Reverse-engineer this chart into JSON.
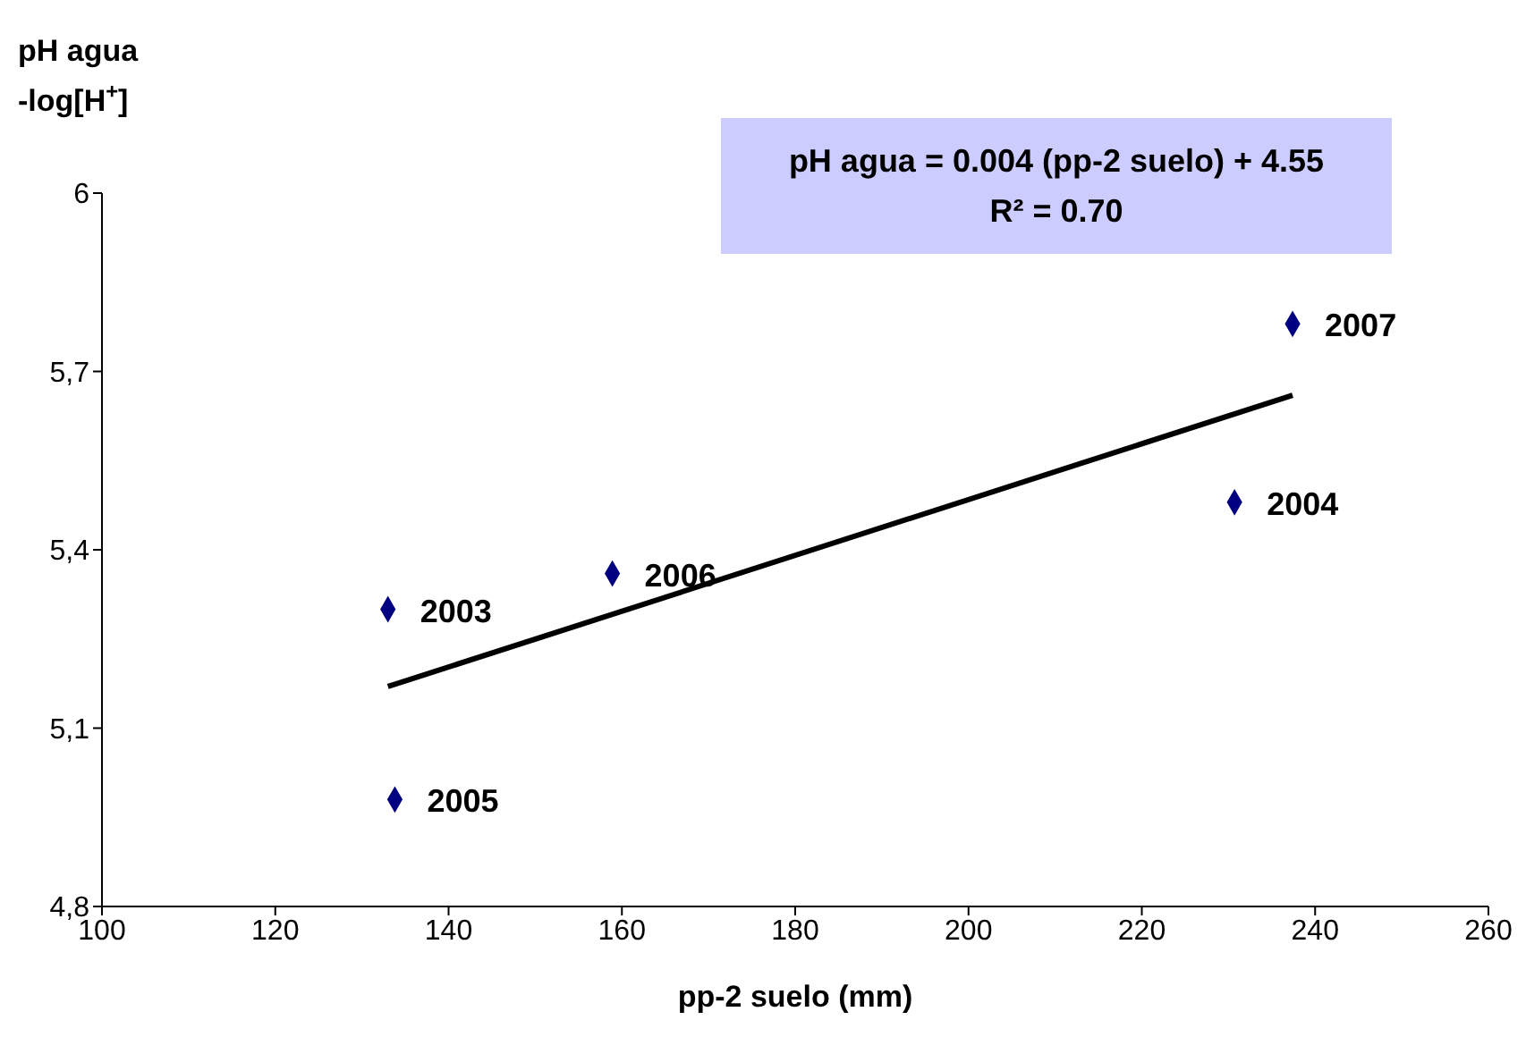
{
  "chart_data": {
    "type": "scatter",
    "xlabel": "pp-2 suelo (mm)",
    "ylabel": "pH agua\n-log[H$^{+}$]",
    "xlim": [
      100,
      260
    ],
    "xticks": [
      100,
      120,
      140,
      160,
      180,
      200,
      220,
      240,
      260
    ],
    "ylim": [
      4.8,
      6
    ],
    "yticks": [
      {
        "value": 4.8,
        "label": "4,8"
      },
      {
        "value": 5.1,
        "label": "5,1"
      },
      {
        "value": 5.4,
        "label": "5,4"
      },
      {
        "value": 5.7,
        "label": "5,7"
      },
      6
    ],
    "marker": "diamond",
    "series": [
      {
        "color": "#000080",
        "x": [
          133,
          133.8,
          158.9,
          230.7,
          237.4
        ],
        "values": [
          5.3,
          4.98,
          5.36,
          5.48,
          5.78
        ]
      },
      {
        "type": "line",
        "color": "#000000",
        "marker": "none",
        "x": [
          133,
          237.4
        ],
        "values": [
          5.17,
          5.66
        ]
      }
    ],
    "annotations": [
      "pH agua = 0.004 (pp-2 suelo) + 4.55",
      "R² = 0.70",
      {
        "text": "2003",
        "x": 133,
        "y": 5.3
      },
      {
        "text": "2005",
        "x": 133.8,
        "y": 4.98
      },
      {
        "text": "2006",
        "x": 158.9,
        "y": 5.36
      },
      {
        "text": "2004",
        "x": 230.7,
        "y": 5.48
      },
      {
        "text": "2007",
        "x": 237.4,
        "y": 5.78
      }
    ]
  }
}
